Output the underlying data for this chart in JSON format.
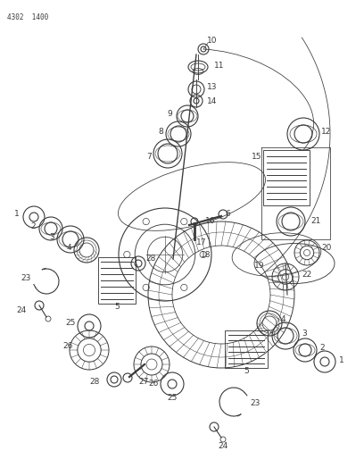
{
  "title": "4302  1400",
  "bg_color": "#ffffff",
  "line_color": "#3a3a3a",
  "fig_width": 4.08,
  "fig_height": 5.33,
  "dpi": 100
}
